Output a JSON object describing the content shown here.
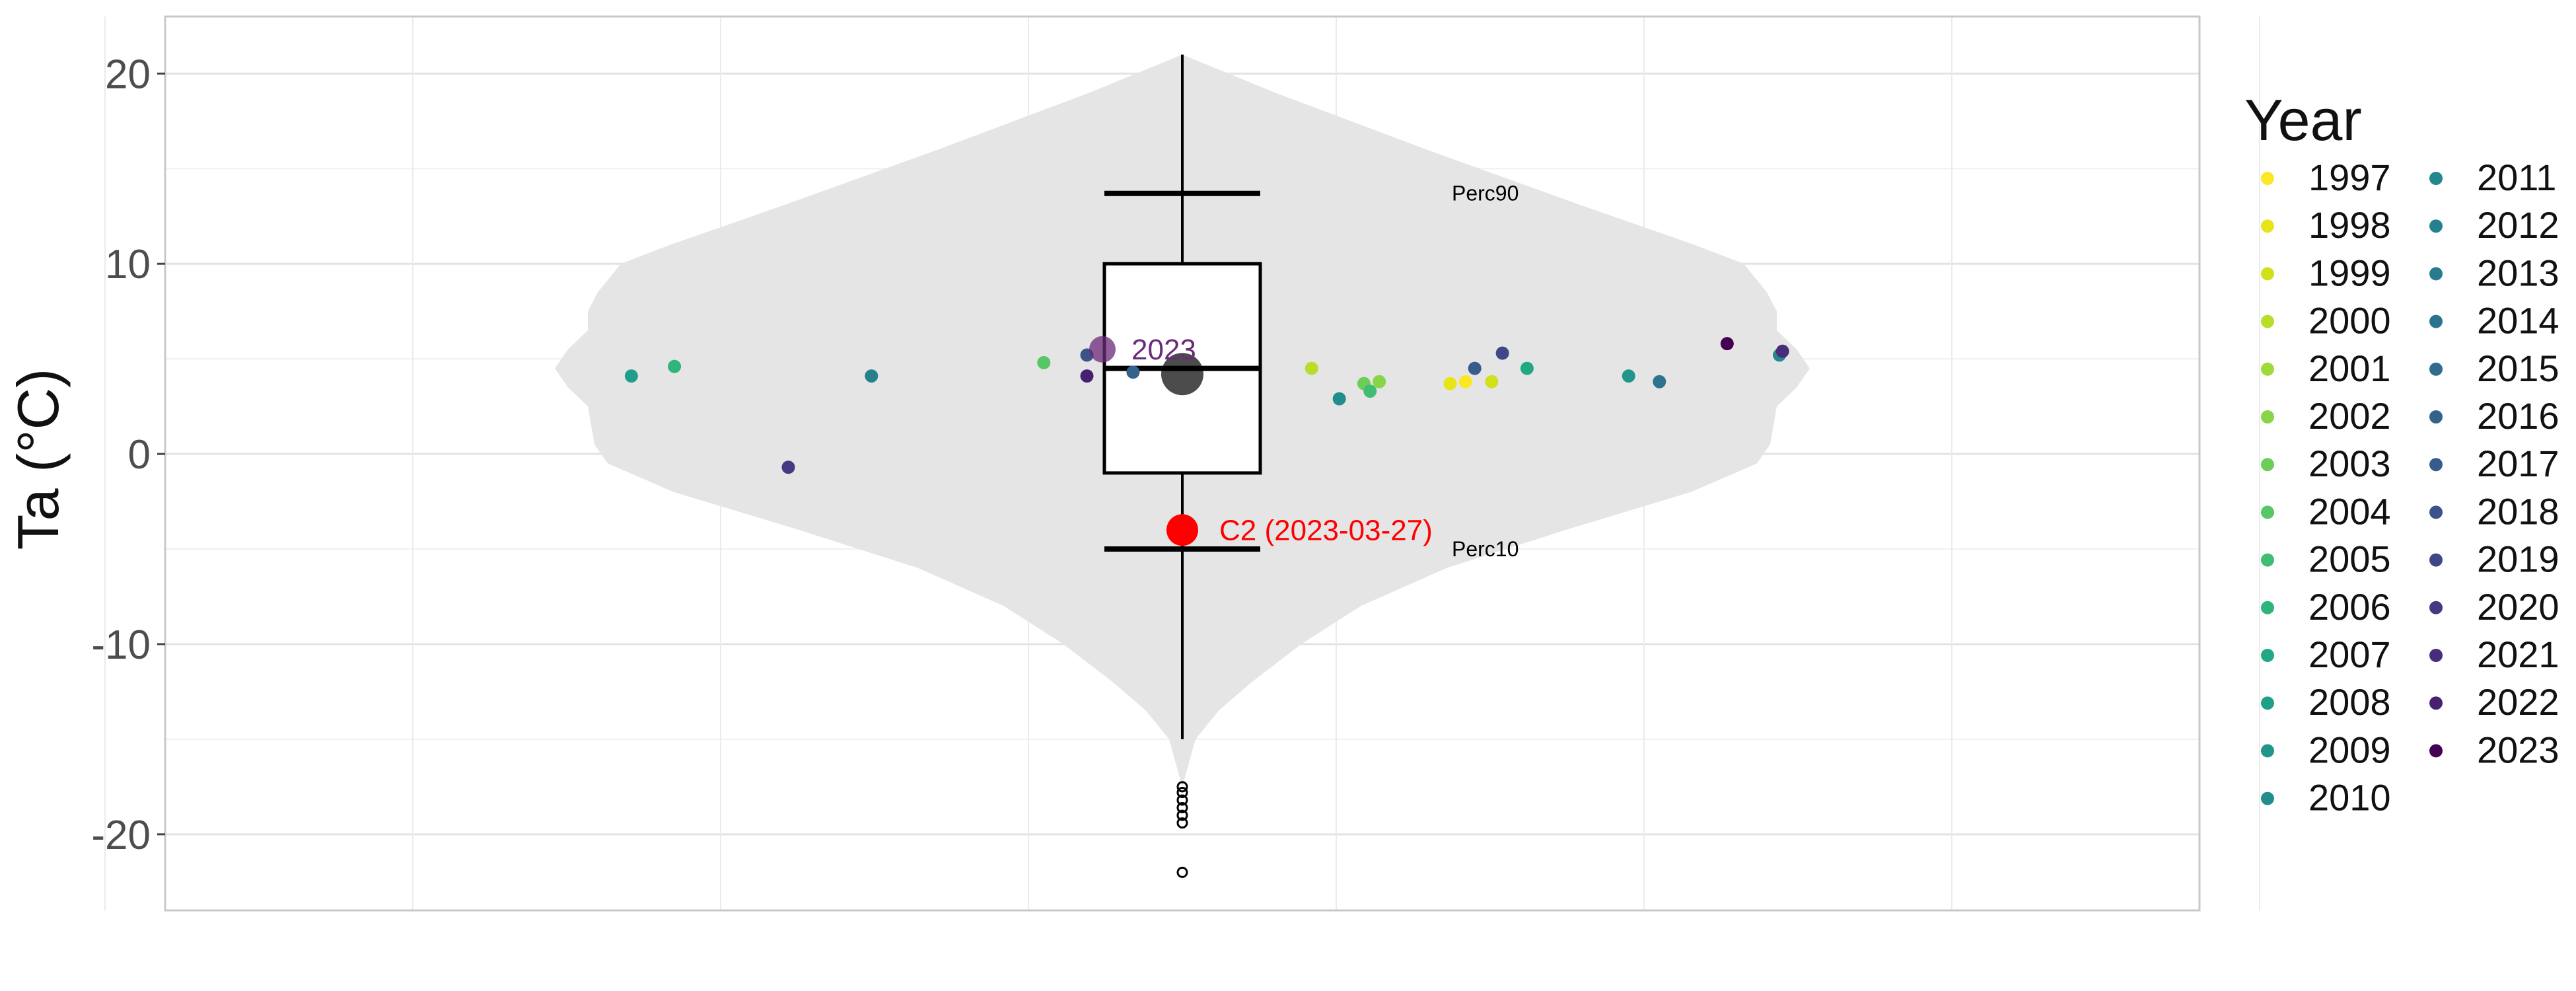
{
  "chart_data": {
    "type": "violin",
    "title": "",
    "xlabel": "",
    "ylabel": "Ta (°C)",
    "ylim": [
      -24,
      23
    ],
    "y_ticks": [
      -20,
      -10,
      0,
      10,
      20
    ],
    "y_tick_labels": [
      "-20",
      "-10",
      "0",
      "10",
      "20"
    ],
    "grid": true,
    "legend": {
      "title": "Year",
      "placement": "right",
      "entries": [
        {
          "label": "1997",
          "color": "#FDE725"
        },
        {
          "label": "1998",
          "color": "#E7E419"
        },
        {
          "label": "1999",
          "color": "#D0E11C"
        },
        {
          "label": "2000",
          "color": "#B8DE29"
        },
        {
          "label": "2001",
          "color": "#A0DA39"
        },
        {
          "label": "2002",
          "color": "#88D548"
        },
        {
          "label": "2003",
          "color": "#6DCD59"
        },
        {
          "label": "2004",
          "color": "#56C667"
        },
        {
          "label": "2005",
          "color": "#40BD72"
        },
        {
          "label": "2006",
          "color": "#2FB47C"
        },
        {
          "label": "2007",
          "color": "#22A884"
        },
        {
          "label": "2008",
          "color": "#1F9E89"
        },
        {
          "label": "2009",
          "color": "#1F958B"
        },
        {
          "label": "2010",
          "color": "#218E8D"
        },
        {
          "label": "2011",
          "color": "#23878E"
        },
        {
          "label": "2012",
          "color": "#26818E"
        },
        {
          "label": "2013",
          "color": "#297A8E"
        },
        {
          "label": "2014",
          "color": "#2C738E"
        },
        {
          "label": "2015",
          "color": "#2F6C8E"
        },
        {
          "label": "2016",
          "color": "#33638D"
        },
        {
          "label": "2017",
          "color": "#375B8D"
        },
        {
          "label": "2018",
          "color": "#3B528B"
        },
        {
          "label": "2019",
          "color": "#404788"
        },
        {
          "label": "2020",
          "color": "#443983"
        },
        {
          "label": "2021",
          "color": "#472D7B"
        },
        {
          "label": "2022",
          "color": "#482071"
        },
        {
          "label": "2023",
          "color": "#440154"
        }
      ]
    },
    "distribution": {
      "whisker_low": -15,
      "q1": -1,
      "median": 4.5,
      "q3": 10,
      "whisker_high": 21,
      "mean": 4.2,
      "outliers": [
        -17.5,
        -17.8,
        -18.2,
        -18.6,
        -19.0,
        -19.4,
        -22.0
      ]
    },
    "reference_lines": [
      {
        "label": "Perc90",
        "value": 13.7
      },
      {
        "label": "Perc10",
        "value": -5
      }
    ],
    "points": [
      {
        "year": "1997",
        "x": 0.92,
        "y": 3.8
      },
      {
        "year": "1998",
        "x": 0.87,
        "y": 3.7
      },
      {
        "year": "1999",
        "x": 1.005,
        "y": 3.8
      },
      {
        "year": "2000",
        "x": 0.42,
        "y": 4.5
      },
      {
        "year": "2002",
        "x": 0.64,
        "y": 3.8
      },
      {
        "year": "2003",
        "x": 0.59,
        "y": 3.7
      },
      {
        "year": "2004",
        "x": -0.45,
        "y": 4.8
      },
      {
        "year": "2005",
        "x": 0.61,
        "y": 3.3
      },
      {
        "year": "2006",
        "x": -1.65,
        "y": 4.6
      },
      {
        "year": "2007",
        "x": 1.12,
        "y": 4.5
      },
      {
        "year": "2008",
        "x": -1.79,
        "y": 4.1
      },
      {
        "year": "2009",
        "x": 1.45,
        "y": 4.1
      },
      {
        "year": "2010",
        "x": 0.51,
        "y": 2.9
      },
      {
        "year": "2011",
        "x": 1.94,
        "y": 5.2
      },
      {
        "year": "2012",
        "x": -1.01,
        "y": 4.1
      },
      {
        "year": "2014",
        "x": 1.55,
        "y": 3.8
      },
      {
        "year": "2016",
        "x": -0.16,
        "y": 4.3
      },
      {
        "year": "2017",
        "x": 0.95,
        "y": 4.5
      },
      {
        "year": "2018",
        "x": -0.31,
        "y": 5.2
      },
      {
        "year": "2019",
        "x": 1.04,
        "y": 5.3
      },
      {
        "year": "2020",
        "x": -1.28,
        "y": -0.7
      },
      {
        "year": "2021",
        "x": 1.95,
        "y": 5.4
      },
      {
        "year": "2022",
        "x": -0.31,
        "y": 4.1
      },
      {
        "year": "2023",
        "x": 1.77,
        "y": 5.8
      }
    ],
    "highlights": [
      {
        "label": "2023",
        "y": 5.5,
        "color": "#6B2A7A"
      },
      {
        "label": "C2 (2023-03-27)",
        "y": -4,
        "color": "#FF0000"
      }
    ]
  }
}
